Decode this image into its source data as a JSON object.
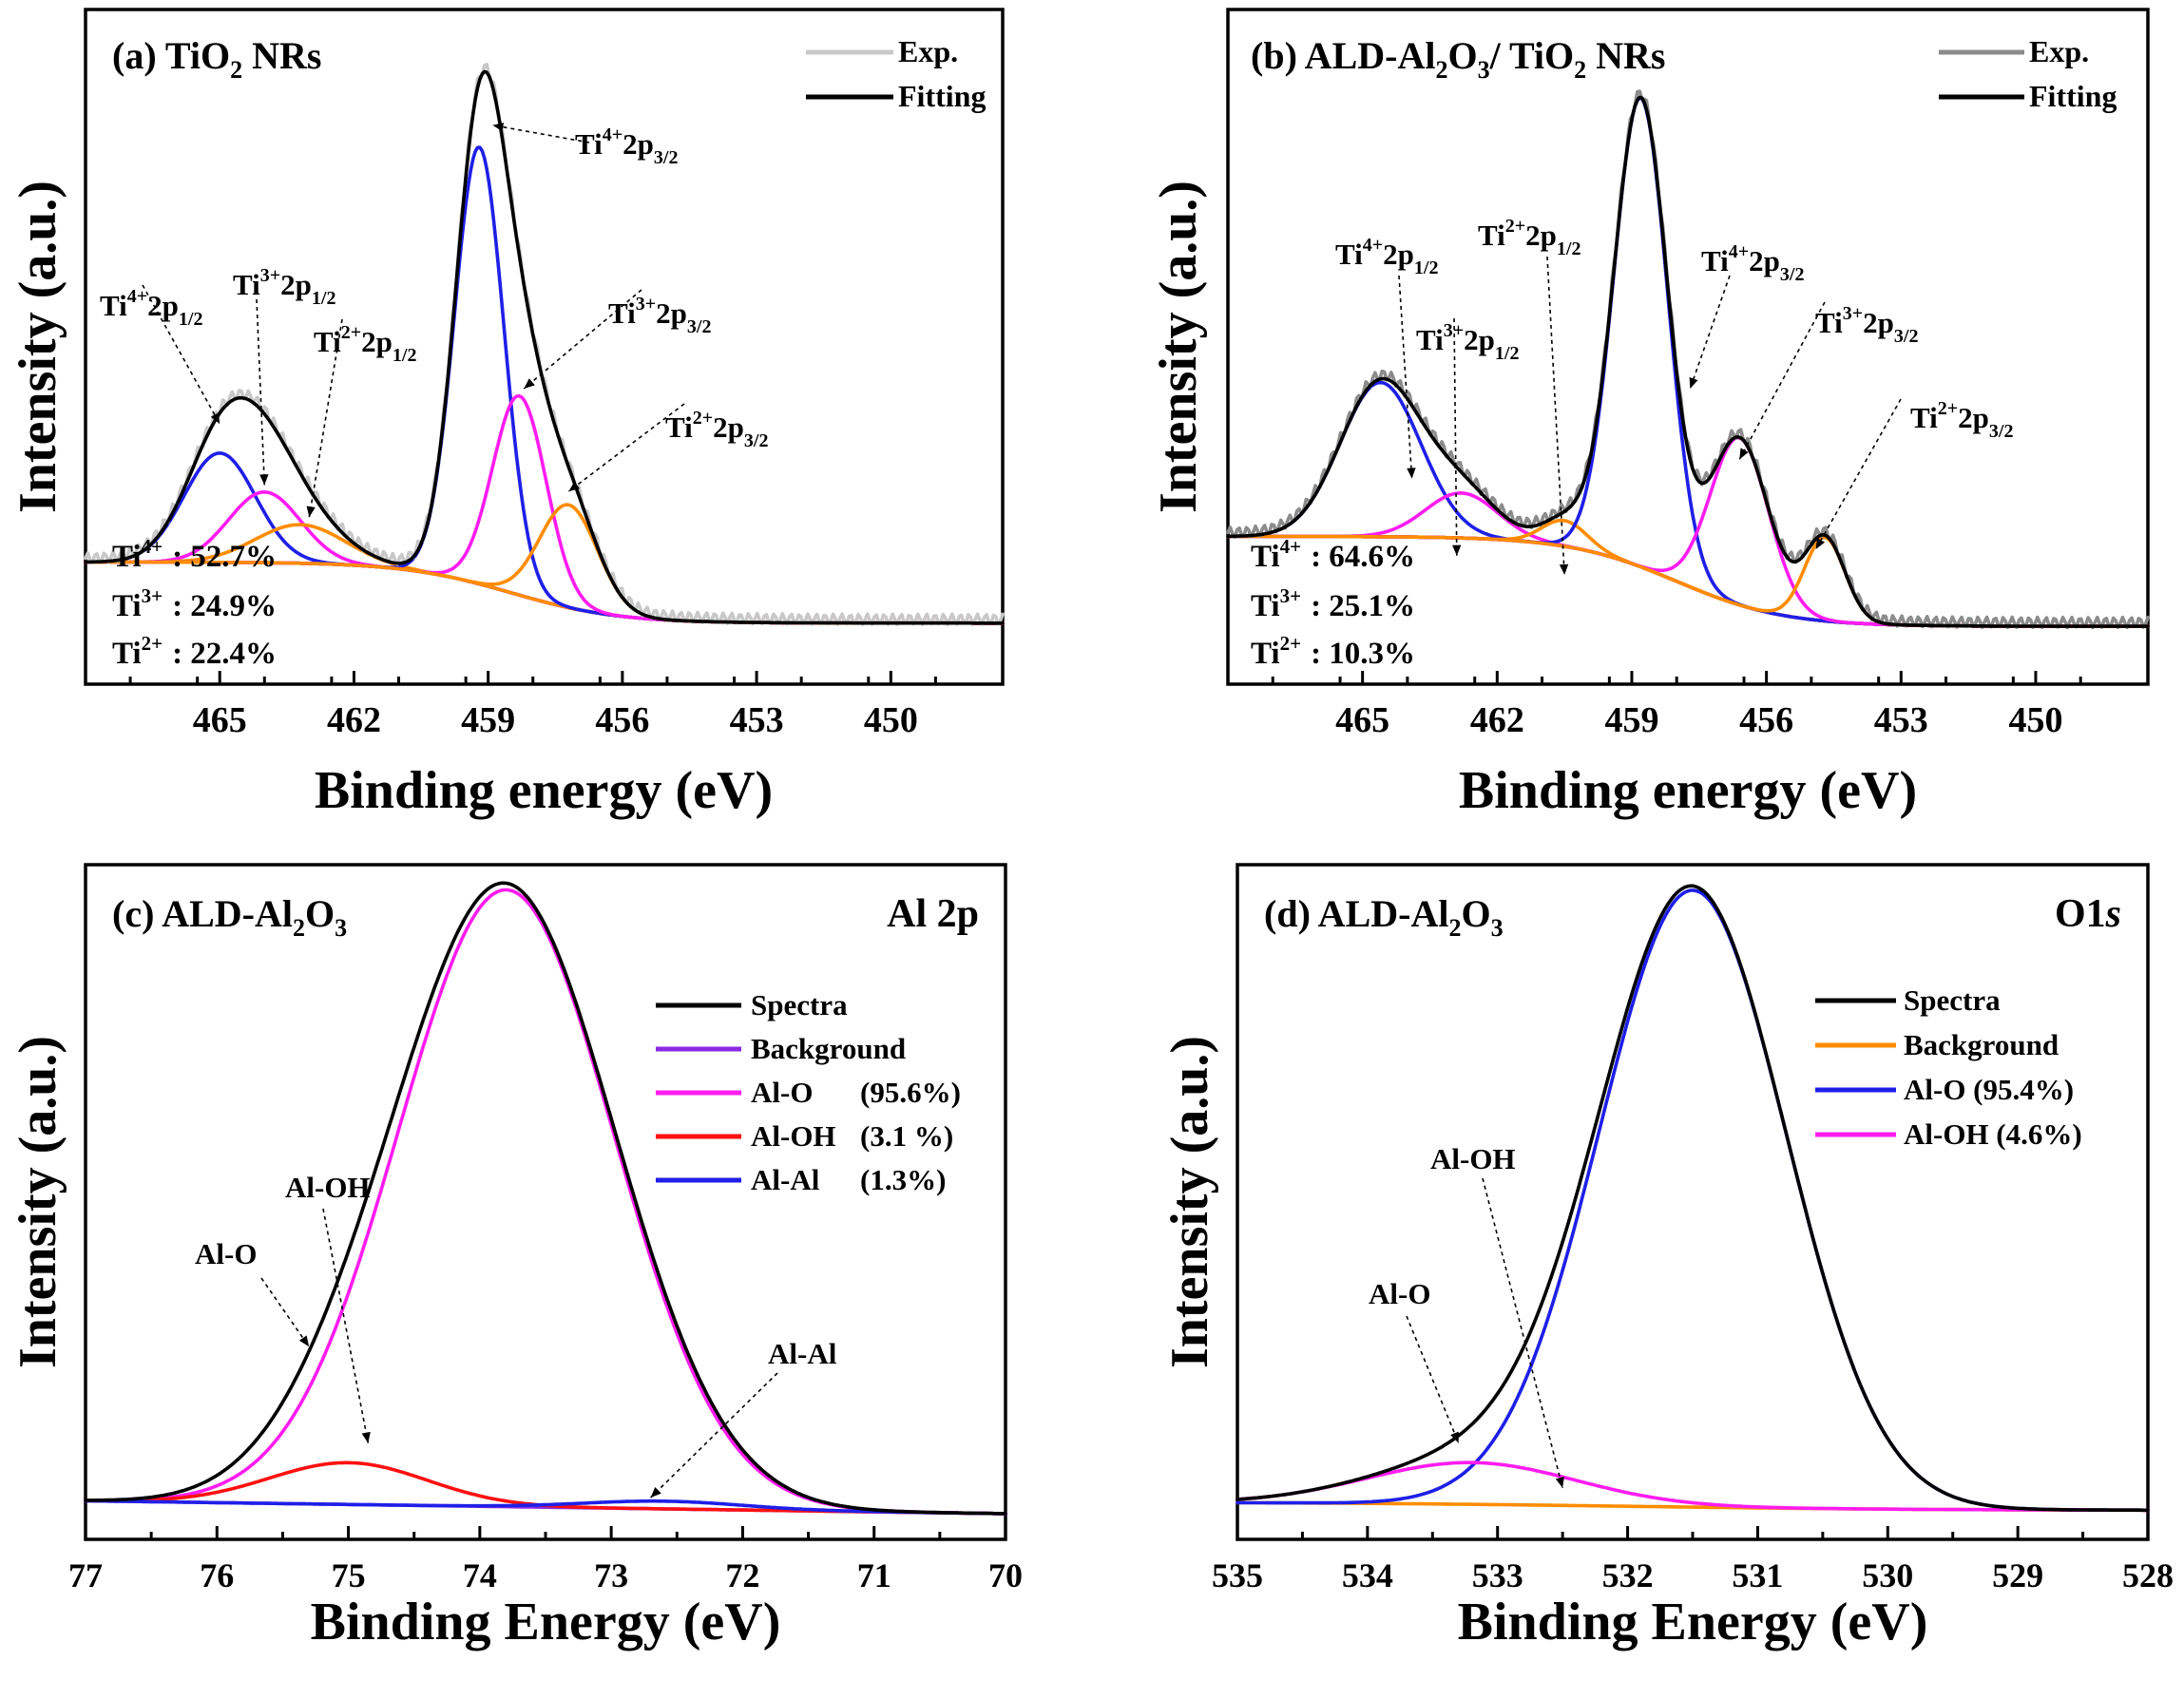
{
  "colors": {
    "black": "#000000",
    "exp": "#c8c8c8",
    "blue": "#1f1fe8",
    "magenta": "#ff1cf0",
    "orange": "#ff8c00",
    "red": "#ff1010",
    "purple": "#8a2be2"
  },
  "chart_data": [
    {
      "id": "a",
      "type": "line",
      "title_parts": [
        "(a) TiO",
        "2",
        " NRs"
      ],
      "xlabel": "Binding energy (eV)",
      "ylabel": "Intensity (a.u.)",
      "xlim": [
        468,
        447.5
      ],
      "ylim": [
        -0.05,
        1.0
      ],
      "xticks": [
        465,
        462,
        459,
        456,
        453,
        450
      ],
      "legend": {
        "position": "top-right",
        "entries": [
          {
            "label": "Exp.",
            "color": "#c8c8c8"
          },
          {
            "label": "Fitting",
            "color": "#000000"
          }
        ]
      },
      "percentages": [
        {
          "ion": "Ti",
          "sup": "4+",
          "value": ": 52.7%"
        },
        {
          "ion": "Ti",
          "sup": "3+",
          "value": ": 24.9%"
        },
        {
          "ion": "Ti",
          "sup": "2+",
          "value": ": 22.4%"
        }
      ],
      "background": {
        "color": "#ff8c00",
        "step_center": 458.5,
        "high": 0.14,
        "low": 0.045
      },
      "components": [
        {
          "name": "Ti4+ 2p1/2",
          "color": "#1f1fe8",
          "center": 465.0,
          "amp": 0.17,
          "width": 0.8
        },
        {
          "name": "Ti3+ 2p1/2",
          "color": "#ff1cf0",
          "center": 464.0,
          "amp": 0.11,
          "width": 0.8
        },
        {
          "name": "Ti2+ 2p1/2",
          "color": "#ff8c00",
          "center": 463.2,
          "amp": 0.06,
          "width": 1.0
        },
        {
          "name": "Ti4+ 2p3/2",
          "color": "#1f1fe8",
          "center": 459.2,
          "amp": 0.68,
          "width": 0.55
        },
        {
          "name": "Ti3+ 2p3/2",
          "color": "#ff1cf0",
          "center": 458.3,
          "amp": 0.31,
          "width": 0.6
        },
        {
          "name": "Ti2+ 2p3/2",
          "color": "#ff8c00",
          "center": 457.2,
          "amp": 0.16,
          "width": 0.65
        }
      ],
      "annotations": [
        {
          "base": "Ti",
          "sup": "4+",
          "rest": "2p",
          "sub": "1/2",
          "target_x": 465.0,
          "target_y": 0.355
        },
        {
          "base": "Ti",
          "sup": "3+",
          "rest": "2p",
          "sub": "1/2",
          "target_x": 464.0,
          "target_y": 0.26
        },
        {
          "base": "Ti",
          "sup": "2+",
          "rest": "2p",
          "sub": "1/2",
          "target_x": 463.0,
          "target_y": 0.21
        },
        {
          "base": "Ti",
          "sup": "4+",
          "rest": "2p",
          "sub": "3/2",
          "target_x": 458.9,
          "target_y": 0.82
        },
        {
          "base": "Ti",
          "sup": "3+",
          "rest": "2p",
          "sub": "3/2",
          "target_x": 458.2,
          "target_y": 0.41
        },
        {
          "base": "Ti",
          "sup": "2+",
          "rest": "2p",
          "sub": "3/2",
          "target_x": 457.2,
          "target_y": 0.25
        }
      ]
    },
    {
      "id": "b",
      "type": "line",
      "title_parts": [
        "(b) ALD-Al",
        "2",
        "O",
        "3",
        "/ TiO",
        "2",
        " NRs"
      ],
      "xlabel": "Binding energy (eV)",
      "ylabel": "Intensity (a.u.)",
      "xlim": [
        468,
        447.5
      ],
      "ylim": [
        -0.05,
        1.0
      ],
      "xticks": [
        465,
        462,
        459,
        456,
        453,
        450
      ],
      "legend": {
        "position": "top-right",
        "entries": [
          {
            "label": "Exp.",
            "color": "#8c8c8c"
          },
          {
            "label": "Fitting",
            "color": "#000000"
          }
        ]
      },
      "percentages": [
        {
          "ion": "Ti",
          "sup": "4+",
          "value": ": 64.6%"
        },
        {
          "ion": "Ti",
          "sup": "3+",
          "value": ": 25.1%"
        },
        {
          "ion": "Ti",
          "sup": "2+",
          "value": ": 10.3%"
        }
      ],
      "background": {
        "color": "#ff8c00",
        "step_center": 458.0,
        "high": 0.18,
        "low": 0.04
      },
      "components": [
        {
          "name": "Ti4+ 2p1/2",
          "color": "#1f1fe8",
          "center": 464.6,
          "amp": 0.24,
          "width": 0.9
        },
        {
          "name": "Ti3+ 2p1/2",
          "color": "#ff1cf0",
          "center": 462.8,
          "amp": 0.07,
          "width": 0.8
        },
        {
          "name": "Ti2+ 2p1/2",
          "color": "#ff8c00",
          "center": 460.5,
          "amp": 0.04,
          "width": 0.5
        },
        {
          "name": "Ti4+ 2p3/2",
          "color": "#1f1fe8",
          "center": 458.8,
          "amp": 0.73,
          "width": 0.6
        },
        {
          "name": "Ti3+ 2p3/2",
          "color": "#ff1cf0",
          "center": 456.6,
          "amp": 0.26,
          "width": 0.65
        },
        {
          "name": "Ti2+ 2p3/2",
          "color": "#ff8c00",
          "center": 454.7,
          "amp": 0.13,
          "width": 0.45
        }
      ],
      "annotations": [
        {
          "base": "Ti",
          "sup": "4+",
          "rest": "2p",
          "sub": "1/2",
          "target_x": 463.9,
          "target_y": 0.27
        },
        {
          "base": "Ti",
          "sup": "3+",
          "rest": "2p",
          "sub": "1/2",
          "target_x": 462.9,
          "target_y": 0.15
        },
        {
          "base": "Ti",
          "sup": "2+",
          "rest": "2p",
          "sub": "1/2",
          "target_x": 460.5,
          "target_y": 0.12
        },
        {
          "base": "Ti",
          "sup": "4+",
          "rest": "2p",
          "sub": "3/2",
          "target_x": 457.7,
          "target_y": 0.41
        },
        {
          "base": "Ti",
          "sup": "3+",
          "rest": "2p",
          "sub": "3/2",
          "target_x": 456.6,
          "target_y": 0.3
        },
        {
          "base": "Ti",
          "sup": "2+",
          "rest": "2p",
          "sub": "3/2",
          "target_x": 454.9,
          "target_y": 0.16
        }
      ]
    },
    {
      "id": "c",
      "type": "line",
      "title_parts": [
        "(c) ALD-Al",
        "2",
        "O",
        "3"
      ],
      "corner_label": "Al 2p",
      "xlabel": "Binding Energy (eV)",
      "ylabel": "Intensity (a.u.)",
      "xlim": [
        77,
        70
      ],
      "ylim": [
        -0.05,
        1.0
      ],
      "xticks": [
        77,
        76,
        75,
        74,
        73,
        72,
        71,
        70
      ],
      "legend": {
        "position": "top-right",
        "entries": [
          {
            "label": "Spectra",
            "color": "#000000"
          },
          {
            "label": "Background",
            "color": "#8a2be2"
          },
          {
            "label": "Al-O",
            "pct": "(95.6%)",
            "color": "#ff1cf0"
          },
          {
            "label": "Al-OH",
            "pct": "(3.1 %)",
            "color": "#ff1010"
          },
          {
            "label": "Al-Al",
            "pct": "(1.3%)",
            "color": "#1f1fe8"
          }
        ]
      },
      "background": {
        "color": "#8a2be2",
        "from": 0.01,
        "to": -0.01
      },
      "components": [
        {
          "name": "Al-O",
          "color": "#ff1cf0",
          "center": 73.8,
          "amp": 0.96,
          "width": 0.82
        },
        {
          "name": "Al-OH",
          "color": "#ff1010",
          "center": 75.0,
          "amp": 0.065,
          "width": 0.6
        },
        {
          "name": "Al-Al",
          "color": "#1f1fe8",
          "center": 72.6,
          "amp": 0.012,
          "width": 0.6
        }
      ],
      "annotations": [
        {
          "text": "Al-O",
          "target_x": 75.3,
          "target_y": 0.25
        },
        {
          "text": "Al-OH",
          "target_x": 74.85,
          "target_y": 0.1
        },
        {
          "text": "Al-Al",
          "target_x": 72.7,
          "target_y": 0.015
        }
      ]
    },
    {
      "id": "d",
      "type": "line",
      "title_parts": [
        "(d) ALD-Al",
        "2",
        "O",
        "3"
      ],
      "corner_label": "O1",
      "corner_label_italic": "s",
      "xlabel": "Binding Energy (eV)",
      "ylabel": "Intensity (a.u.)",
      "xlim": [
        535,
        528
      ],
      "ylim": [
        -0.05,
        1.0
      ],
      "xticks": [
        535,
        534,
        533,
        532,
        531,
        530,
        529,
        528
      ],
      "legend": {
        "position": "top-right",
        "entries": [
          {
            "label": "Spectra",
            "color": "#000000"
          },
          {
            "label": "Background",
            "color": "#ff8c00"
          },
          {
            "label": "Al-O (95.4%)",
            "color": "#1f1fe8"
          },
          {
            "label": "Al-OH (4.6%)",
            "color": "#ff1cf0"
          }
        ]
      },
      "background": {
        "color": "#ff8c00",
        "step_center": 532.0,
        "high": 0.008,
        "low": -0.005
      },
      "components": [
        {
          "name": "Al-O",
          "color": "#1f1fe8",
          "center": 531.5,
          "amp": 0.96,
          "width": 0.72
        },
        {
          "name": "Al-OH",
          "color": "#ff1cf0",
          "center": 533.2,
          "amp": 0.065,
          "width": 0.8
        }
      ],
      "annotations": [
        {
          "text": "Al-O",
          "target_x": 533.3,
          "target_y": 0.1
        },
        {
          "text": "Al-OH",
          "target_x": 532.5,
          "target_y": 0.03
        }
      ]
    }
  ]
}
